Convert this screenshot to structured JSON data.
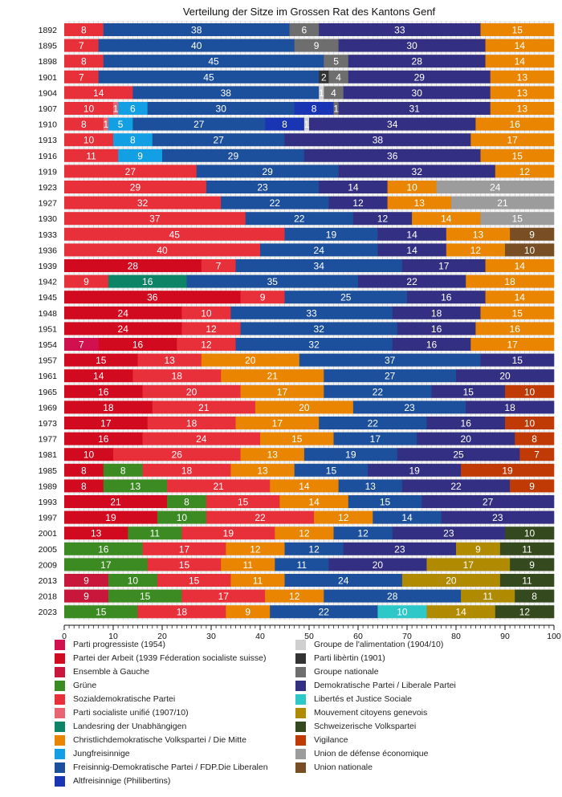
{
  "chart_data": {
    "type": "bar",
    "orientation": "horizontal-stacked",
    "title": "Verteilung der Sitze im Grossen Rat des Kantons Genf",
    "xlabel": "",
    "ylabel": "",
    "xlim": [
      0,
      100
    ],
    "xticks": [
      "0",
      "10",
      "20",
      "30",
      "40",
      "50",
      "60",
      "70",
      "80",
      "90",
      "100"
    ],
    "legend_position": "bottom",
    "parties": [
      {
        "key": "pp",
        "name": "Parti progressiste (1954)",
        "color": "#d1104f"
      },
      {
        "key": "pda",
        "name": "Partei der Arbeit (1939 Féderation socialiste suisse)",
        "color": "#d10a1f"
      },
      {
        "key": "eag",
        "name": "Ensemble à Gauche",
        "color": "#c8173a"
      },
      {
        "key": "gps",
        "name": "Grüne",
        "color": "#3c8a22"
      },
      {
        "key": "sp",
        "name": "Sozialdemokratische Partei",
        "color": "#e8303a"
      },
      {
        "key": "psu",
        "name": "Parti socialiste unifié (1907/10)",
        "color": "#e86470"
      },
      {
        "key": "ldu",
        "name": "Landesring der Unabhängigen",
        "color": "#0d8466"
      },
      {
        "key": "cvp",
        "name": "Christlichdemokratische Volkspartei / Die Mitte",
        "color": "#e98500"
      },
      {
        "key": "jf",
        "name": "Jungfreisinnige",
        "color": "#129fe3"
      },
      {
        "key": "fdp",
        "name": "Freisinnig-Demokratische Partei / FDP.Die Liberalen",
        "color": "#1c4f9c"
      },
      {
        "key": "alt",
        "name": "Altfreisinnige (Philibertins)",
        "color": "#1a35b4"
      },
      {
        "key": "ali",
        "name": "Groupe de l'alimentation (1904/10)",
        "color": "#cfcfcf"
      },
      {
        "key": "lib1",
        "name": "Parti libèrtin (1901)",
        "color": "#333333"
      },
      {
        "key": "gn",
        "name": "Groupe nationale",
        "color": "#6e6e6e"
      },
      {
        "key": "lps",
        "name": "Demokratische Partei / Liberale Partei",
        "color": "#332f82"
      },
      {
        "key": "ljs",
        "name": "Libertés et Justice Sociale",
        "color": "#2ec8c8"
      },
      {
        "key": "mcg",
        "name": "Mouvement citoyens genevois",
        "color": "#b08a00"
      },
      {
        "key": "svp",
        "name": "Schweizerische Volkspartei",
        "color": "#344a1e"
      },
      {
        "key": "vig",
        "name": "Vigilance",
        "color": "#c03a06"
      },
      {
        "key": "ude",
        "name": "Union de défense économique",
        "color": "#9c9c9c"
      },
      {
        "key": "un",
        "name": "Union nationale",
        "color": "#7a4e24"
      }
    ],
    "categories": [
      "1892",
      "1895",
      "1898",
      "1901",
      "1904",
      "1907",
      "1910",
      "1913",
      "1916",
      "1919",
      "1923",
      "1927",
      "1930",
      "1933",
      "1936",
      "1939",
      "1942",
      "1945",
      "1948",
      "1951",
      "1954",
      "1957",
      "1961",
      "1965",
      "1969",
      "1973",
      "1977",
      "1981",
      "1985",
      "1989",
      "1993",
      "1997",
      "2001",
      "2005",
      "2009",
      "2013",
      "2018",
      "2023"
    ],
    "rows": [
      {
        "year": "1892",
        "segments": [
          [
            "sp",
            8
          ],
          [
            "fdp",
            38
          ],
          [
            "gn",
            6
          ],
          [
            "lps",
            33
          ],
          [
            "cvp",
            15
          ]
        ]
      },
      {
        "year": "1895",
        "segments": [
          [
            "sp",
            7
          ],
          [
            "fdp",
            40
          ],
          [
            "gn",
            9
          ],
          [
            "lps",
            30
          ],
          [
            "cvp",
            14
          ]
        ]
      },
      {
        "year": "1898",
        "segments": [
          [
            "sp",
            8
          ],
          [
            "fdp",
            45
          ],
          [
            "gn",
            5
          ],
          [
            "lps",
            28
          ],
          [
            "cvp",
            14
          ]
        ]
      },
      {
        "year": "1901",
        "segments": [
          [
            "sp",
            7
          ],
          [
            "fdp",
            45
          ],
          [
            "lib1",
            2
          ],
          [
            "gn",
            4
          ],
          [
            "lps",
            29
          ],
          [
            "cvp",
            13
          ]
        ]
      },
      {
        "year": "1904",
        "segments": [
          [
            "sp",
            14
          ],
          [
            "fdp",
            38
          ],
          [
            "ali",
            1
          ],
          [
            "gn",
            4
          ],
          [
            "lps",
            30
          ],
          [
            "cvp",
            13
          ]
        ]
      },
      {
        "year": "1907",
        "segments": [
          [
            "sp",
            10
          ],
          [
            "psu",
            1
          ],
          [
            "jf",
            6
          ],
          [
            "fdp",
            30
          ],
          [
            "alt",
            8
          ],
          [
            "gn",
            1
          ],
          [
            "lps",
            31
          ],
          [
            "cvp",
            13
          ]
        ]
      },
      {
        "year": "1910",
        "segments": [
          [
            "sp",
            8
          ],
          [
            "psu",
            1
          ],
          [
            "jf",
            5
          ],
          [
            "fdp",
            27
          ],
          [
            "alt",
            8
          ],
          [
            "ali",
            1
          ],
          [
            "lps",
            34
          ],
          [
            "cvp",
            16
          ]
        ]
      },
      {
        "year": "1913",
        "segments": [
          [
            "sp",
            10
          ],
          [
            "jf",
            8
          ],
          [
            "fdp",
            27
          ],
          [
            "lps",
            38
          ],
          [
            "cvp",
            17
          ]
        ]
      },
      {
        "year": "1916",
        "segments": [
          [
            "sp",
            11
          ],
          [
            "jf",
            9
          ],
          [
            "fdp",
            29
          ],
          [
            "lps",
            36
          ],
          [
            "cvp",
            15
          ]
        ]
      },
      {
        "year": "1919",
        "segments": [
          [
            "sp",
            27
          ],
          [
            "fdp",
            29
          ],
          [
            "lps",
            32
          ],
          [
            "cvp",
            12
          ]
        ]
      },
      {
        "year": "1923",
        "segments": [
          [
            "sp",
            29
          ],
          [
            "fdp",
            23
          ],
          [
            "lps",
            14
          ],
          [
            "cvp",
            10
          ],
          [
            "ude",
            24
          ]
        ]
      },
      {
        "year": "1927",
        "segments": [
          [
            "sp",
            32
          ],
          [
            "fdp",
            22
          ],
          [
            "lps",
            12
          ],
          [
            "cvp",
            13
          ],
          [
            "ude",
            21
          ]
        ]
      },
      {
        "year": "1930",
        "segments": [
          [
            "sp",
            37
          ],
          [
            "fdp",
            22
          ],
          [
            "lps",
            12
          ],
          [
            "cvp",
            14
          ],
          [
            "ude",
            15
          ]
        ]
      },
      {
        "year": "1933",
        "segments": [
          [
            "sp",
            45
          ],
          [
            "fdp",
            19
          ],
          [
            "lps",
            14
          ],
          [
            "cvp",
            13
          ],
          [
            "un",
            9
          ]
        ]
      },
      {
        "year": "1936",
        "segments": [
          [
            "sp",
            40
          ],
          [
            "fdp",
            24
          ],
          [
            "lps",
            14
          ],
          [
            "cvp",
            12
          ],
          [
            "un",
            10
          ]
        ]
      },
      {
        "year": "1939",
        "segments": [
          [
            "pda",
            28
          ],
          [
            "sp",
            7
          ],
          [
            "fdp",
            34
          ],
          [
            "lps",
            17
          ],
          [
            "cvp",
            14
          ]
        ]
      },
      {
        "year": "1942",
        "segments": [
          [
            "sp",
            9
          ],
          [
            "ldu",
            16
          ],
          [
            "fdp",
            35
          ],
          [
            "lps",
            22
          ],
          [
            "cvp",
            18
          ]
        ]
      },
      {
        "year": "1945",
        "segments": [
          [
            "pda",
            36
          ],
          [
            "sp",
            9
          ],
          [
            "fdp",
            25
          ],
          [
            "lps",
            16
          ],
          [
            "cvp",
            14
          ]
        ]
      },
      {
        "year": "1948",
        "segments": [
          [
            "pda",
            24
          ],
          [
            "sp",
            10
          ],
          [
            "fdp",
            33
          ],
          [
            "lps",
            18
          ],
          [
            "cvp",
            15
          ]
        ]
      },
      {
        "year": "1951",
        "segments": [
          [
            "pda",
            24
          ],
          [
            "sp",
            12
          ],
          [
            "fdp",
            32
          ],
          [
            "lps",
            16
          ],
          [
            "cvp",
            16
          ]
        ]
      },
      {
        "year": "1954",
        "segments": [
          [
            "pp",
            7
          ],
          [
            "pda",
            16
          ],
          [
            "sp",
            12
          ],
          [
            "fdp",
            32
          ],
          [
            "lps",
            16
          ],
          [
            "cvp",
            17
          ]
        ]
      },
      {
        "year": "1957",
        "segments": [
          [
            "pda",
            15
          ],
          [
            "sp",
            13
          ],
          [
            "cvp",
            20
          ],
          [
            "fdp",
            37
          ],
          [
            "lps",
            15
          ]
        ]
      },
      {
        "year": "1961",
        "segments": [
          [
            "pda",
            14
          ],
          [
            "sp",
            18
          ],
          [
            "cvp",
            21
          ],
          [
            "fdp",
            27
          ],
          [
            "lps",
            20
          ]
        ]
      },
      {
        "year": "1965",
        "segments": [
          [
            "pda",
            16
          ],
          [
            "sp",
            20
          ],
          [
            "cvp",
            17
          ],
          [
            "fdp",
            22
          ],
          [
            "lps",
            15
          ],
          [
            "vig",
            10
          ]
        ]
      },
      {
        "year": "1969",
        "segments": [
          [
            "pda",
            18
          ],
          [
            "sp",
            21
          ],
          [
            "cvp",
            20
          ],
          [
            "fdp",
            23
          ],
          [
            "lps",
            18
          ]
        ]
      },
      {
        "year": "1973",
        "segments": [
          [
            "pda",
            17
          ],
          [
            "sp",
            18
          ],
          [
            "cvp",
            17
          ],
          [
            "fdp",
            22
          ],
          [
            "lps",
            16
          ],
          [
            "vig",
            10
          ]
        ]
      },
      {
        "year": "1977",
        "segments": [
          [
            "pda",
            16
          ],
          [
            "sp",
            24
          ],
          [
            "cvp",
            15
          ],
          [
            "fdp",
            17
          ],
          [
            "lps",
            20
          ],
          [
            "vig",
            8
          ]
        ]
      },
      {
        "year": "1981",
        "segments": [
          [
            "pda",
            10
          ],
          [
            "sp",
            26
          ],
          [
            "cvp",
            13
          ],
          [
            "fdp",
            19
          ],
          [
            "lps",
            25
          ],
          [
            "vig",
            7
          ]
        ]
      },
      {
        "year": "1985",
        "segments": [
          [
            "pda",
            8
          ],
          [
            "gps",
            8
          ],
          [
            "sp",
            18
          ],
          [
            "cvp",
            13
          ],
          [
            "fdp",
            15
          ],
          [
            "lps",
            19
          ],
          [
            "vig",
            19
          ]
        ]
      },
      {
        "year": "1989",
        "segments": [
          [
            "pda",
            8
          ],
          [
            "gps",
            13
          ],
          [
            "sp",
            21
          ],
          [
            "cvp",
            14
          ],
          [
            "fdp",
            13
          ],
          [
            "lps",
            22
          ],
          [
            "vig",
            9
          ]
        ]
      },
      {
        "year": "1993",
        "segments": [
          [
            "pda",
            21
          ],
          [
            "gps",
            8
          ],
          [
            "sp",
            15
          ],
          [
            "cvp",
            14
          ],
          [
            "fdp",
            15
          ],
          [
            "lps",
            27
          ]
        ]
      },
      {
        "year": "1997",
        "segments": [
          [
            "pda",
            19
          ],
          [
            "gps",
            10
          ],
          [
            "sp",
            22
          ],
          [
            "cvp",
            12
          ],
          [
            "fdp",
            14
          ],
          [
            "lps",
            23
          ]
        ]
      },
      {
        "year": "2001",
        "segments": [
          [
            "pda",
            13
          ],
          [
            "gps",
            11
          ],
          [
            "sp",
            19
          ],
          [
            "cvp",
            12
          ],
          [
            "fdp",
            12
          ],
          [
            "lps",
            23
          ],
          [
            "svp",
            10
          ]
        ]
      },
      {
        "year": "2005",
        "segments": [
          [
            "gps",
            16
          ],
          [
            "sp",
            17
          ],
          [
            "cvp",
            12
          ],
          [
            "fdp",
            12
          ],
          [
            "lps",
            23
          ],
          [
            "mcg",
            9
          ],
          [
            "svp",
            11
          ]
        ]
      },
      {
        "year": "2009",
        "segments": [
          [
            "gps",
            17
          ],
          [
            "sp",
            15
          ],
          [
            "cvp",
            11
          ],
          [
            "fdp",
            11
          ],
          [
            "lps",
            20
          ],
          [
            "mcg",
            17
          ],
          [
            "svp",
            9
          ]
        ]
      },
      {
        "year": "2013",
        "segments": [
          [
            "eag",
            9
          ],
          [
            "gps",
            10
          ],
          [
            "sp",
            15
          ],
          [
            "cvp",
            11
          ],
          [
            "fdp",
            24
          ],
          [
            "mcg",
            20
          ],
          [
            "svp",
            11
          ]
        ]
      },
      {
        "year": "2018",
        "segments": [
          [
            "eag",
            9
          ],
          [
            "gps",
            15
          ],
          [
            "sp",
            17
          ],
          [
            "cvp",
            12
          ],
          [
            "fdp",
            28
          ],
          [
            "mcg",
            11
          ],
          [
            "svp",
            8
          ]
        ]
      },
      {
        "year": "2023",
        "segments": [
          [
            "gps",
            15
          ],
          [
            "sp",
            18
          ],
          [
            "cvp",
            9
          ],
          [
            "fdp",
            22
          ],
          [
            "ljs",
            10
          ],
          [
            "mcg",
            14
          ],
          [
            "svp",
            12
          ]
        ]
      }
    ]
  }
}
